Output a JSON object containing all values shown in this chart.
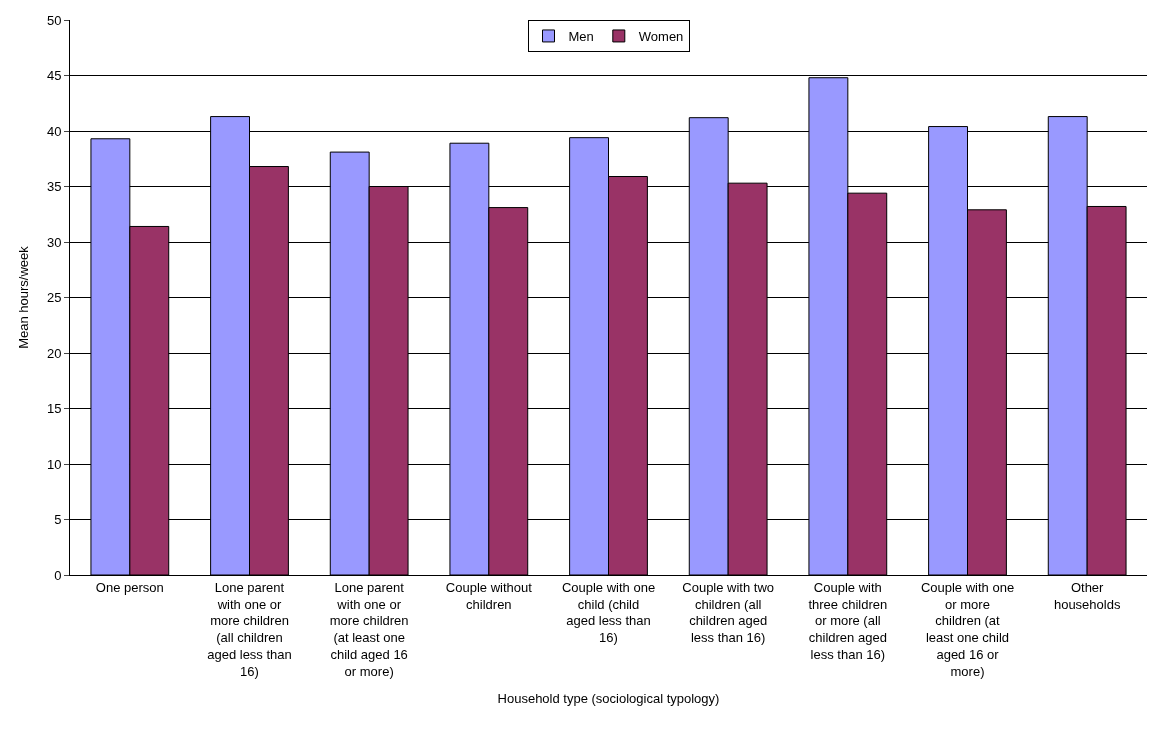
{
  "chart_data": {
    "type": "bar",
    "xlabel": "Household type (sociological typology)",
    "ylabel": "Mean hours/week",
    "categories": [
      "One person",
      "Lone parent with one or more children (all children aged less than 16)",
      "Lone parent with one or more children (at least one child aged 16 or more)",
      "Couple without children",
      "Couple with one child (child aged less than 16)",
      "Couple with two children (all children aged less than 16)",
      "Couple with three children or more (all children aged less than 16)",
      "Couple with one or more children (at least one child aged 16 or more)",
      "Other households"
    ],
    "series": [
      {
        "name": "Men",
        "color": "#9999ff",
        "values": [
          39.3,
          41.3,
          38.1,
          38.9,
          39.4,
          41.2,
          44.8,
          40.4,
          41.3
        ]
      },
      {
        "name": "Women",
        "color": "#993366",
        "values": [
          31.4,
          36.8,
          35.0,
          33.1,
          35.9,
          35.3,
          34.4,
          32.9,
          33.2
        ]
      }
    ],
    "ylim": [
      0,
      50
    ],
    "yticks": [
      0,
      5,
      10,
      15,
      20,
      25,
      30,
      35,
      40,
      45,
      50
    ],
    "grid": "y",
    "legend": "top"
  }
}
